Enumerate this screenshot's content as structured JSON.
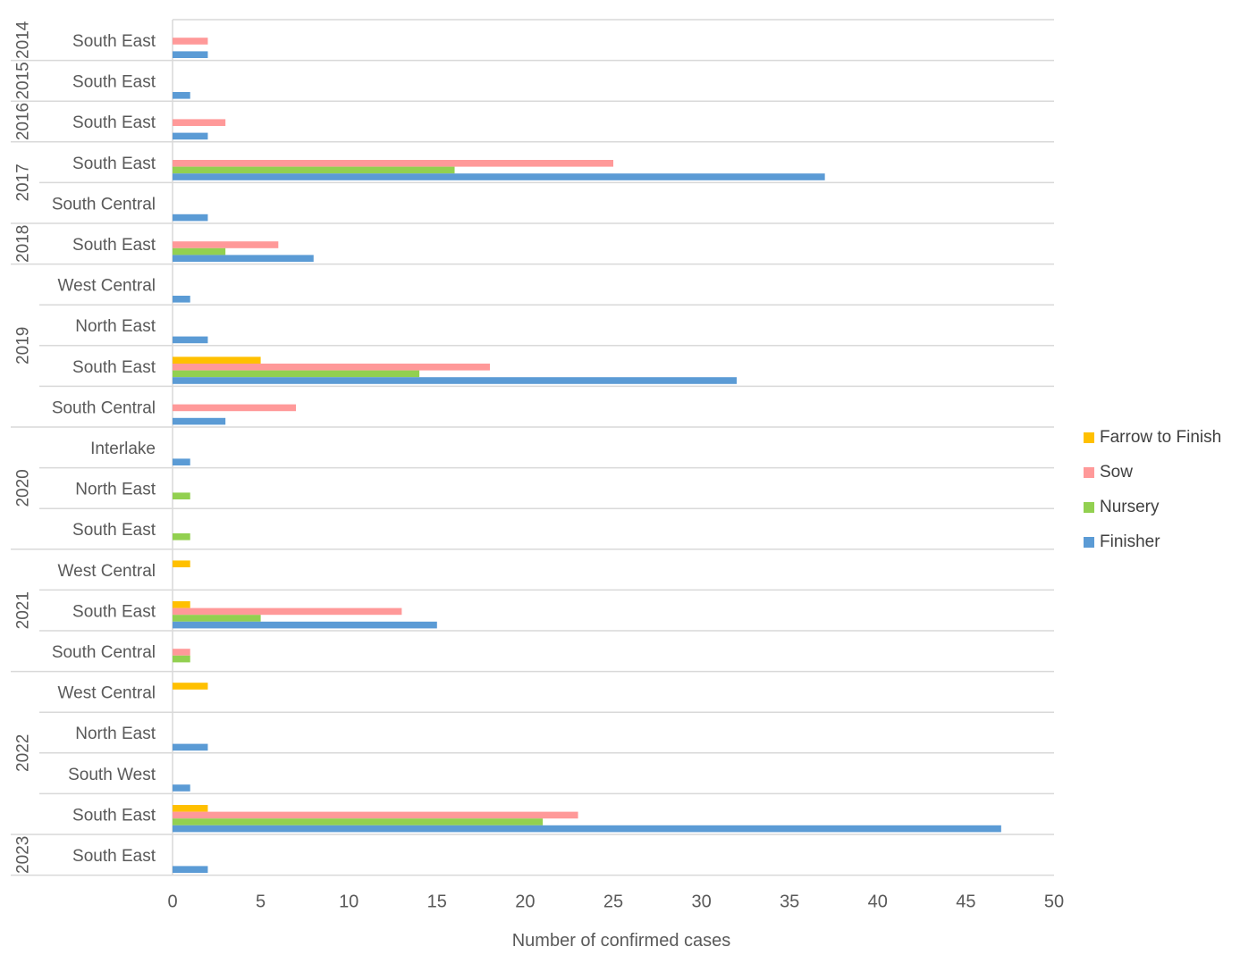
{
  "chart_data": {
    "type": "bar",
    "orientation": "horizontal",
    "xlabel": "Number of confirmed cases",
    "xlim": [
      0,
      50
    ],
    "xticks": [
      0,
      5,
      10,
      15,
      20,
      25,
      30,
      35,
      40,
      45,
      50
    ],
    "grid": "horizontal category separators",
    "legend_position": "right",
    "series": [
      {
        "name": "Farrow to Finish",
        "color": "#FFC000"
      },
      {
        "name": "Sow",
        "color": "#FF9999"
      },
      {
        "name": "Nursery",
        "color": "#92D050"
      },
      {
        "name": "Finisher",
        "color": "#5B9BD5"
      }
    ],
    "groups": [
      {
        "year": "2014",
        "rows": [
          {
            "region": "South East",
            "values": [
              0,
              2,
              0,
              2
            ]
          }
        ]
      },
      {
        "year": "2015",
        "rows": [
          {
            "region": "South East",
            "values": [
              0,
              0,
              0,
              1
            ]
          }
        ]
      },
      {
        "year": "2016",
        "rows": [
          {
            "region": "South East",
            "values": [
              0,
              3,
              0,
              2
            ]
          }
        ]
      },
      {
        "year": "2017",
        "rows": [
          {
            "region": "South East",
            "values": [
              0,
              25,
              16,
              37
            ]
          },
          {
            "region": "South Central",
            "values": [
              0,
              0,
              0,
              2
            ]
          }
        ]
      },
      {
        "year": "2018",
        "rows": [
          {
            "region": "South East",
            "values": [
              0,
              6,
              3,
              8
            ]
          }
        ]
      },
      {
        "year": "2019",
        "rows": [
          {
            "region": "West Central",
            "values": [
              0,
              0,
              0,
              1
            ]
          },
          {
            "region": "North East",
            "values": [
              0,
              0,
              0,
              2
            ]
          },
          {
            "region": "South East",
            "values": [
              5,
              18,
              14,
              32
            ]
          },
          {
            "region": "South Central",
            "values": [
              0,
              7,
              0,
              3
            ]
          }
        ]
      },
      {
        "year": "2020",
        "rows": [
          {
            "region": "Interlake",
            "values": [
              0,
              0,
              0,
              1
            ]
          },
          {
            "region": "North East",
            "values": [
              0,
              0,
              1,
              0
            ]
          },
          {
            "region": "South East",
            "values": [
              0,
              0,
              1,
              0
            ]
          }
        ]
      },
      {
        "year": "2021",
        "rows": [
          {
            "region": "West Central",
            "values": [
              1,
              0,
              0,
              0
            ]
          },
          {
            "region": "South East",
            "values": [
              1,
              13,
              5,
              15
            ]
          },
          {
            "region": "South Central",
            "values": [
              0,
              1,
              1,
              0
            ]
          }
        ]
      },
      {
        "year": "2022",
        "rows": [
          {
            "region": "West Central",
            "values": [
              2,
              0,
              0,
              0
            ]
          },
          {
            "region": "North East",
            "values": [
              0,
              0,
              0,
              2
            ]
          },
          {
            "region": "South West",
            "values": [
              0,
              0,
              0,
              1
            ]
          },
          {
            "region": "South East",
            "values": [
              2,
              23,
              21,
              47
            ]
          }
        ]
      },
      {
        "year": "2023",
        "rows": [
          {
            "region": "South East",
            "values": [
              0,
              0,
              0,
              2
            ]
          }
        ]
      }
    ]
  }
}
